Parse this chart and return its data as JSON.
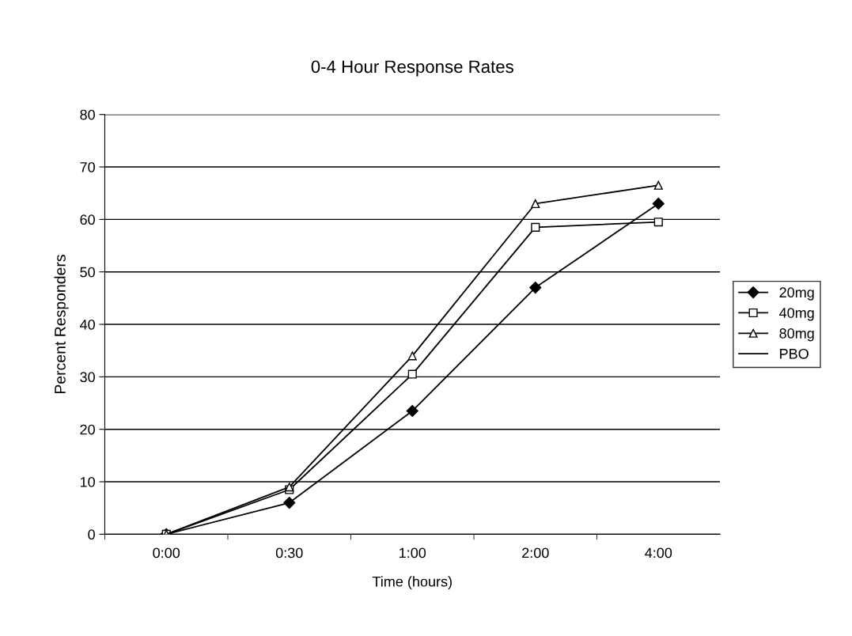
{
  "chart_data": {
    "type": "line",
    "title": "0-4 Hour Response Rates",
    "xlabel": "Time (hours)",
    "ylabel": "Percent Responders",
    "categories": [
      "0:00",
      "0:30",
      "1:00",
      "2:00",
      "4:00"
    ],
    "series": [
      {
        "name": "20mg",
        "color": "#000000",
        "marker": "diamond",
        "values": [
          0,
          6,
          23.5,
          47,
          63
        ]
      },
      {
        "name": "40mg",
        "color": "#000000",
        "marker": "square",
        "values": [
          0,
          8.5,
          30.5,
          58.5,
          59.5
        ]
      },
      {
        "name": "80mg",
        "color": "#000000",
        "marker": "triangle",
        "values": [
          0,
          9,
          34,
          63,
          66.5
        ]
      },
      {
        "name": "PBO",
        "color": "#000000",
        "marker": "none",
        "values": [
          null,
          null,
          null,
          null,
          null
        ]
      }
    ],
    "ylim": [
      0,
      80
    ],
    "yticks": [
      0,
      10,
      20,
      30,
      40,
      50,
      60,
      70,
      80
    ],
    "grid": "y",
    "legend": "right"
  }
}
